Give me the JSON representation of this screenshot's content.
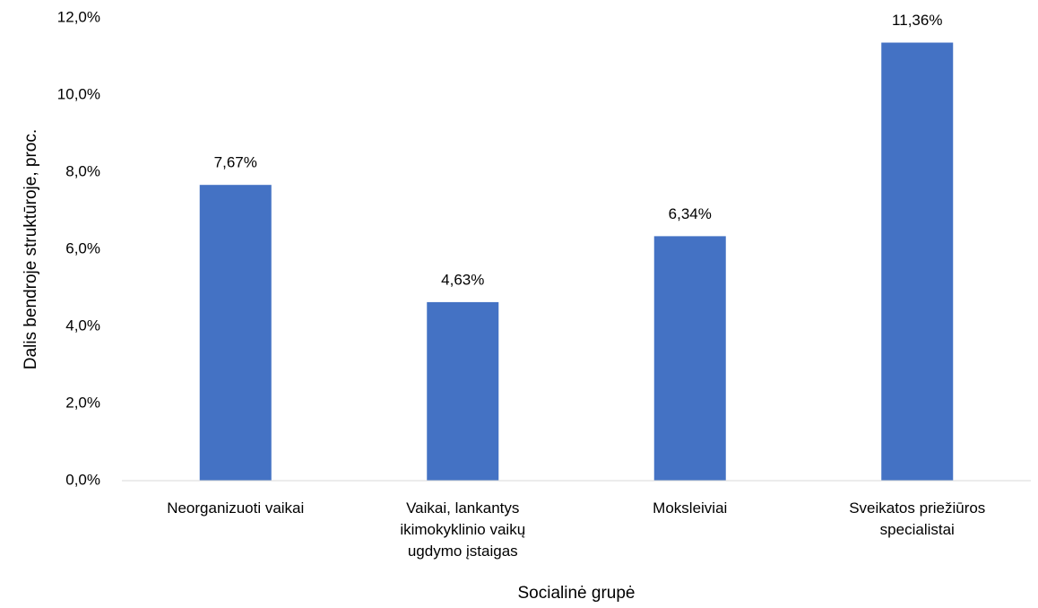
{
  "chart_data": {
    "type": "bar",
    "categories": [
      "Neorganizuoti vaikai",
      "Vaikai, lankantys ikimokyklinio vaikų ugdymo įstaigas",
      "Moksleiviai",
      "Sveikatos priežiūros specialistai"
    ],
    "values": [
      7.67,
      4.63,
      6.34,
      11.36
    ],
    "value_labels": [
      "7,67%",
      "4,63%",
      "6,34%",
      "11,36%"
    ],
    "color": "#4472c4",
    "ylim": [
      0,
      12
    ],
    "yticks": [
      {
        "value": 0,
        "label": "0,0%"
      },
      {
        "value": 2,
        "label": "2,0%"
      },
      {
        "value": 4,
        "label": "4,0%"
      },
      {
        "value": 6,
        "label": "6,0%"
      },
      {
        "value": 8,
        "label": "8,0%"
      },
      {
        "value": 10,
        "label": "10,0%"
      },
      {
        "value": 12,
        "label": "12,0%"
      }
    ],
    "y_label": "Dalis bendroje struktūroje, proc.",
    "x_label": "Socialinė grupė",
    "grid": false
  }
}
